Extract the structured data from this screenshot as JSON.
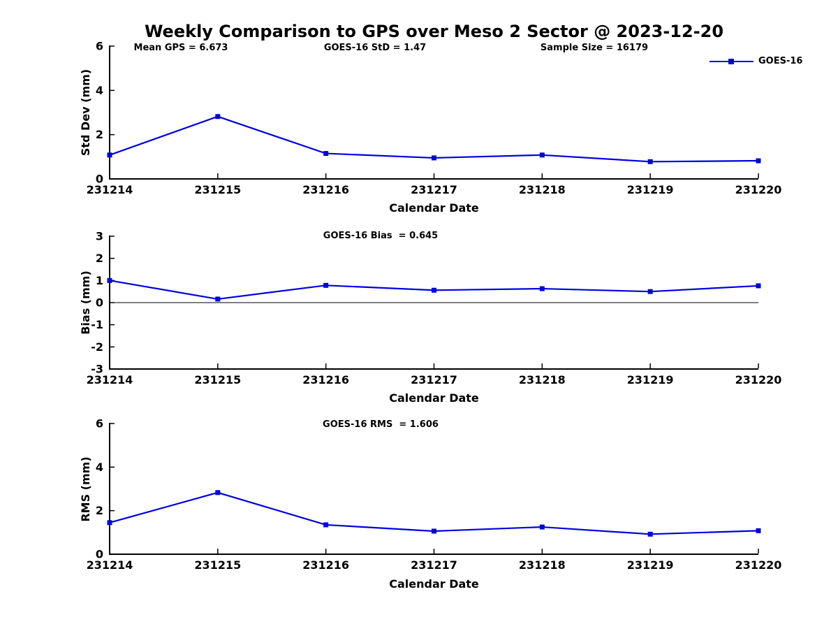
{
  "title": "Weekly Comparison to GPS over Meso 2 Sector @ 2023-12-20",
  "legend": {
    "label": "GOES-16",
    "marker": "filled-square"
  },
  "colors": {
    "line": "#0000dd",
    "axis": "#000000",
    "zero_line": "#000000",
    "background": "#ffffff"
  },
  "chart_data": [
    {
      "type": "line",
      "annotations": [
        "Mean GPS = 6.673",
        "GOES-16 StD = 1.47",
        "Sample Size = 16179"
      ],
      "categories": [
        "231214",
        "231215",
        "231216",
        "231217",
        "231218",
        "231219",
        "231220"
      ],
      "series": [
        {
          "name": "GOES-16",
          "values": [
            1.08,
            2.82,
            1.15,
            0.95,
            1.08,
            0.78,
            0.82
          ]
        }
      ],
      "xlabel": "Calendar Date",
      "ylabel": "Std Dev (mm)",
      "ylim": [
        0,
        6
      ],
      "yticks": [
        0,
        2,
        4,
        6
      ],
      "zero_line": false,
      "grid": false,
      "legend_position": "top-right"
    },
    {
      "type": "line",
      "annotations": [
        "GOES-16 Bias  = 0.645"
      ],
      "categories": [
        "231214",
        "231215",
        "231216",
        "231217",
        "231218",
        "231219",
        "231220"
      ],
      "series": [
        {
          "name": "GOES-16",
          "values": [
            1.0,
            0.16,
            0.78,
            0.56,
            0.63,
            0.5,
            0.76
          ]
        }
      ],
      "xlabel": "Calendar Date",
      "ylabel": "Bias (mm)",
      "ylim": [
        -3,
        3
      ],
      "yticks": [
        3,
        2,
        1,
        0,
        -1,
        -2,
        -3
      ],
      "zero_line": true,
      "grid": false
    },
    {
      "type": "line",
      "annotations": [
        "GOES-16 RMS  = 1.606"
      ],
      "categories": [
        "231214",
        "231215",
        "231216",
        "231217",
        "231218",
        "231219",
        "231220"
      ],
      "series": [
        {
          "name": "GOES-16",
          "values": [
            1.45,
            2.83,
            1.35,
            1.06,
            1.25,
            0.92,
            1.08
          ]
        }
      ],
      "xlabel": "Calendar Date",
      "ylabel": "RMS (mm)",
      "ylim": [
        0,
        6
      ],
      "yticks": [
        0,
        2,
        4,
        6
      ],
      "zero_line": false,
      "grid": false
    }
  ]
}
